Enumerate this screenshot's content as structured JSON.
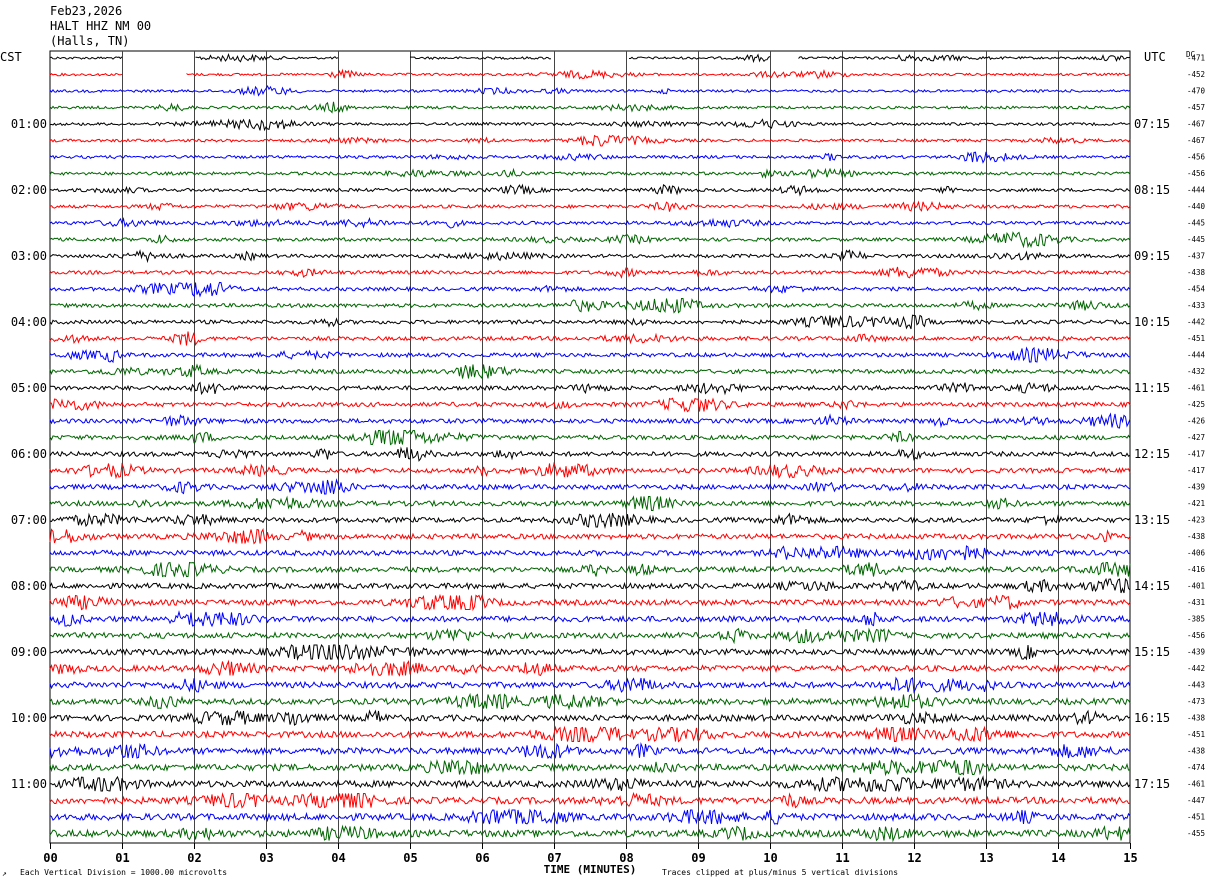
{
  "header": {
    "date": "Feb23,2026",
    "station": "HALT HHZ NM 00",
    "location": "(Halls, TN)"
  },
  "left_tz": "CST",
  "right_tz": "UTC",
  "dc_label": "DC",
  "footer": {
    "division": "Each Vertical Division = 1000.00 microvolts",
    "clip": "Traces clipped at plus/minus 5 vertical divisions"
  },
  "chart_data": {
    "type": "line",
    "title": "",
    "xlabel": "TIME (MINUTES)",
    "x_ticks": [
      "00",
      "01",
      "02",
      "03",
      "04",
      "05",
      "06",
      "07",
      "08",
      "09",
      "10",
      "11",
      "12",
      "13",
      "14",
      "15"
    ],
    "xlim": [
      0,
      15
    ],
    "grid": true,
    "trace_colors": [
      "#000000",
      "#ff0000",
      "#0000ff",
      "#006400"
    ],
    "left_hour_labels": [
      "01:00",
      "02:00",
      "03:00",
      "04:00",
      "05:00",
      "06:00",
      "07:00",
      "08:00",
      "09:00",
      "10:00",
      "11:00"
    ],
    "right_hour_labels": [
      "07:15",
      "08:15",
      "09:15",
      "10:15",
      "11:15",
      "12:15",
      "13:15",
      "14:15",
      "15:15",
      "16:15",
      "17:15"
    ],
    "dc_offsets": [
      -471,
      -452,
      -470,
      -457,
      -467,
      -467,
      -456,
      -456,
      -444,
      -440,
      -445,
      -445,
      -437,
      -438,
      -454,
      -433,
      -442,
      -451,
      -444,
      -432,
      -461,
      -425,
      -426,
      -427,
      -417,
      -417,
      -439,
      -421,
      -423,
      -438,
      -406,
      -416,
      -401,
      -431,
      -385,
      -456,
      -439,
      -442,
      -443,
      -473,
      -438,
      -451,
      -438,
      -474,
      -461,
      -447,
      -451,
      -455
    ],
    "trace_count": 48,
    "minutes_per_trace": 15
  }
}
